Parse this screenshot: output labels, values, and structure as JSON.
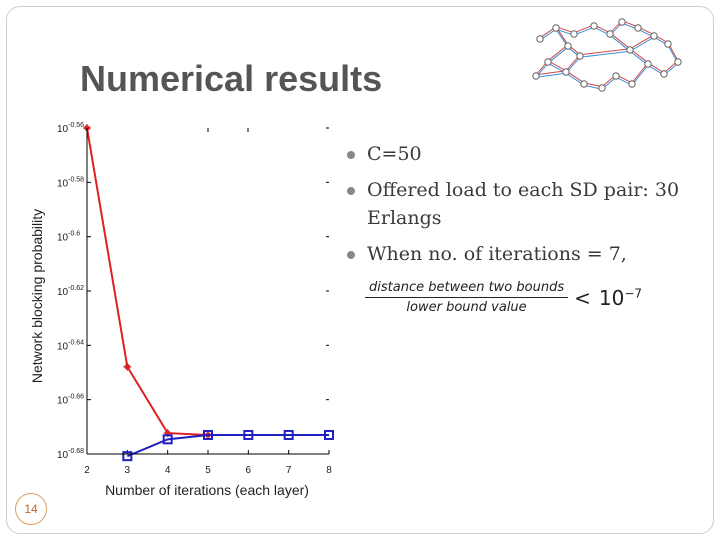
{
  "slide": {
    "title": "Numerical results",
    "page_number": "14"
  },
  "bullets": [
    {
      "text": "C=50"
    },
    {
      "text": "Offered load to each SD pair: 30 Erlangs"
    },
    {
      "text": "When no. of iterations = 7,"
    }
  ],
  "formula": {
    "numerator": "distance between two bounds",
    "denominator": "lower bound value",
    "relation": "<",
    "rhs_base": "10",
    "rhs_exponent": "−7"
  },
  "chart_data": {
    "type": "line",
    "xlabel": "Number of iterations (each layer)",
    "ylabel": "Network blocking probability",
    "x_ticks": [
      "2",
      "3",
      "4",
      "5",
      "6",
      "7",
      "8"
    ],
    "y_ticks": [
      "10^-0.56",
      "10^-0.58",
      "10^-0.6",
      "10^-0.62",
      "10^-0.64",
      "10^-0.66",
      "10^-0.68"
    ],
    "y_scale": "log",
    "xlim": [
      2,
      8
    ],
    "ylim_log10": [
      -0.68,
      -0.56
    ],
    "grid": false,
    "series": [
      {
        "color": "#e02020",
        "marker": "star",
        "x": [
          2,
          3,
          4,
          5
        ],
        "y_log10": [
          -0.56,
          -0.6479,
          -0.6723,
          -0.673
        ]
      },
      {
        "color": "#2020c0",
        "marker": "square",
        "x": [
          3,
          4,
          5,
          6,
          7,
          8
        ],
        "y_log10": [
          -0.6808,
          -0.6746,
          -0.673,
          -0.673,
          -0.673,
          -0.673
        ]
      }
    ]
  },
  "network_thumbnail": {
    "edge_color_1": "#d04848",
    "edge_color_2": "#3a8fd6",
    "node_color": "#666666"
  }
}
